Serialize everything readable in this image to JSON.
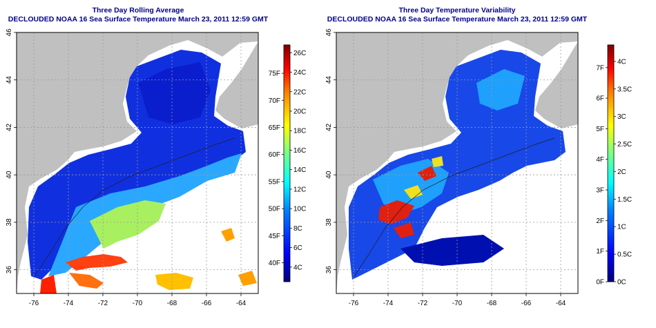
{
  "maps": [
    {
      "title_line1": "Three Day Rolling Average",
      "title_line2": "DECLOUDED NOAA 16 Sea Surface Temperature March 23, 2011 12:59 GMT",
      "lon_ticks": [
        "-76",
        "-74",
        "-72",
        "-70",
        "-68",
        "-66",
        "-64"
      ],
      "lat_ticks": [
        "36",
        "38",
        "40",
        "42",
        "44",
        "46"
      ],
      "colorbar_c": [
        "4C",
        "6C",
        "8C",
        "10C",
        "12C",
        "14C",
        "16C",
        "18C",
        "20C",
        "22C",
        "24C",
        "26C"
      ],
      "colorbar_f": [
        "40F",
        "45F",
        "50F",
        "55F",
        "60F",
        "65F",
        "70F",
        "75F"
      ],
      "colorbar_range_c": [
        2.5,
        26.8
      ]
    },
    {
      "title_line1": "Three Day Temperature Variability",
      "title_line2": "DECLOUDED NOAA 16 Sea Surface Temperature March 23, 2011 12:59 GMT",
      "lon_ticks": [
        "-76",
        "-74",
        "-72",
        "-70",
        "-68",
        "-66",
        "-64"
      ],
      "lat_ticks": [
        "36",
        "38",
        "40",
        "42",
        "44",
        "46"
      ],
      "colorbar_c": [
        "0C",
        "0.5C",
        "1C",
        "1.5C",
        "2C",
        "2.5C",
        "3C",
        "3.5C",
        "4C"
      ],
      "colorbar_f": [
        "0F",
        "1F",
        "2F",
        "3F",
        "4F",
        "5F",
        "6F",
        "7F"
      ],
      "colorbar_range_c": [
        0,
        4.3
      ]
    }
  ],
  "map_extent": {
    "lon": [
      -77,
      -63
    ],
    "lat": [
      35,
      46
    ]
  },
  "colors": {
    "land": "#c0c0c0",
    "ocean_no_data": "#ffffff",
    "title": "#00008b",
    "grid": "#9a9a9a"
  }
}
